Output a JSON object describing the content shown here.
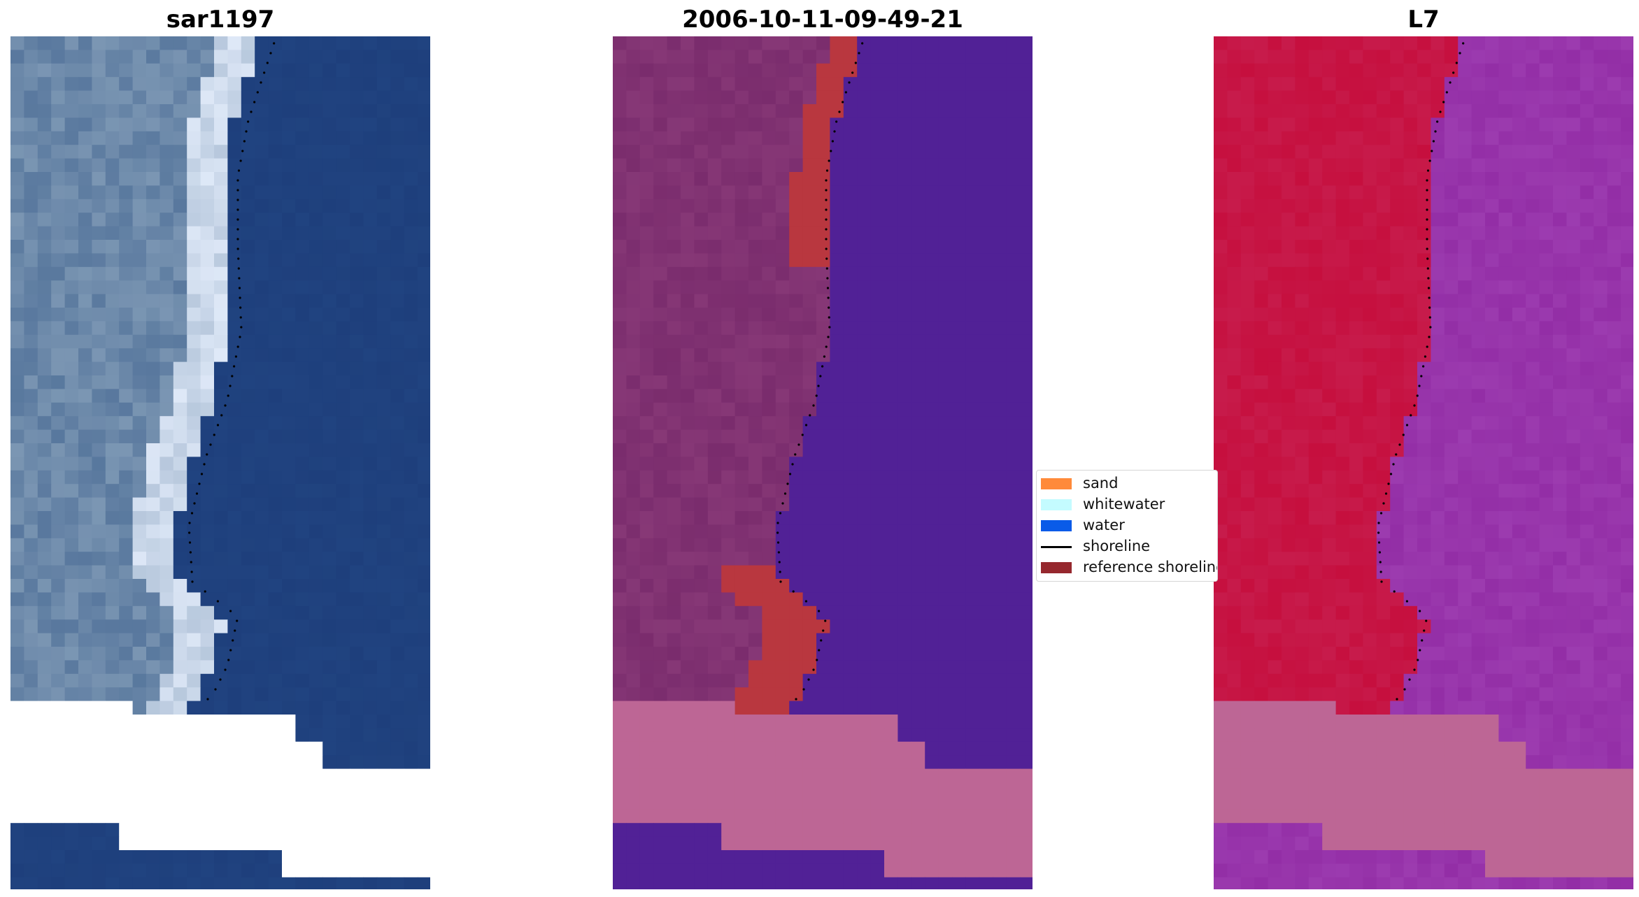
{
  "panels": [
    {
      "title": "sar1197"
    },
    {
      "title": "2006-10-11-09-49-21"
    },
    {
      "title": "L7"
    }
  ],
  "legend": {
    "items": [
      {
        "label": "sand",
        "kind": "patch",
        "color": "#ff8a3a"
      },
      {
        "label": "whitewater",
        "kind": "patch",
        "color": "#c4fbff"
      },
      {
        "label": "water",
        "kind": "patch",
        "color": "#0a5be8"
      },
      {
        "label": "shoreline",
        "kind": "line",
        "color": "#000000"
      },
      {
        "label": "reference shoreline",
        "kind": "patch",
        "color": "#96282e"
      }
    ]
  },
  "colors": {
    "rgb_water": "#1e3f7c",
    "rgb_sand": "#7b96b3",
    "rgb_surf": "#dfe9f8",
    "class_water": "#512196",
    "class_land": "#7a2c6d",
    "class_reference": "#b9373f",
    "class_nodata": "#bd6695",
    "ndwi_land": "#c60f3e",
    "ndwi_water": "#932ea6",
    "ndwi_nodata": "#bd6695",
    "shoreline_dots": "#000000"
  }
}
